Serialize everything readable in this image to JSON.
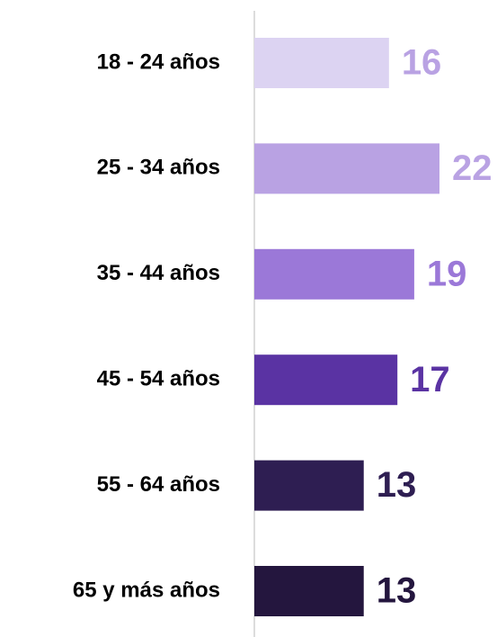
{
  "chart_data": {
    "type": "barh",
    "categories": [
      "18 - 24 años",
      "25 - 34 años",
      "35 - 44 años",
      "45 - 54 años",
      "55 - 64 años",
      "65 y más años"
    ],
    "values": [
      16,
      22,
      19,
      17,
      13,
      13
    ],
    "colors": [
      "#dcd3f2",
      "#b9a2e3",
      "#9b78d8",
      "#5a33a3",
      "#2e1e52",
      "#24163e"
    ],
    "label_colors": [
      "#b9a2e3",
      "#b9a2e3",
      "#9b78d8",
      "#5a33a3",
      "#2e1e52",
      "#24163e"
    ]
  }
}
